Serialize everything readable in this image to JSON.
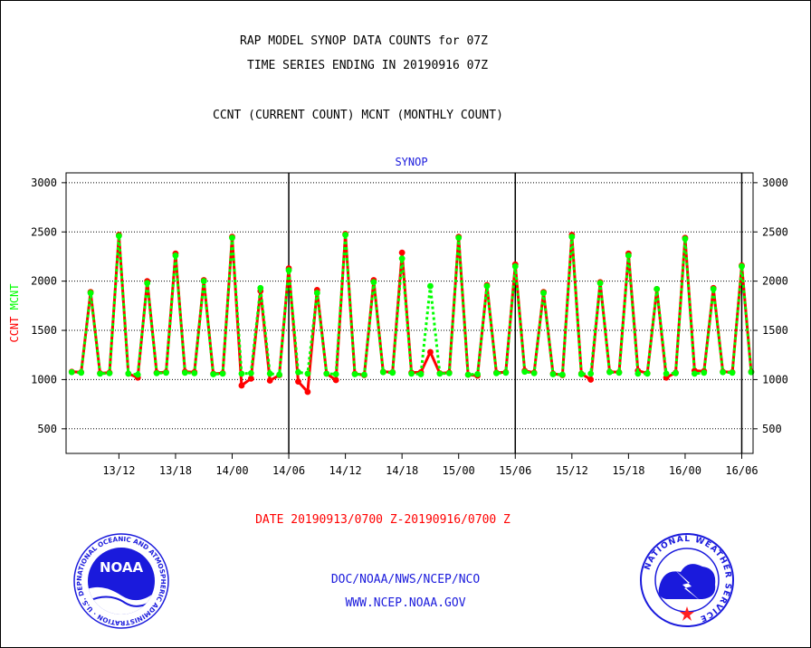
{
  "header": {
    "title_line1": "RAP MODEL SYNOP DATA COUNTS for 07Z",
    "title_line2": "TIME SERIES ENDING IN 20190916 07Z",
    "title_line3": "CCNT (CURRENT COUNT) MCNT (MONTHLY COUNT)"
  },
  "chart_data": {
    "type": "line",
    "title": "SYNOP",
    "ylabel_current": "CCNT",
    "ylabel_monthly": "MCNT",
    "xlabel": "DATE 20190913/0700 Z-20190916/0700 Z",
    "ylim": [
      250,
      3100
    ],
    "yticks": [
      500,
      1000,
      1500,
      2000,
      2500,
      3000
    ],
    "ytick_labels": [
      "500",
      "1000",
      "1500",
      "2000",
      "2500",
      "3000"
    ],
    "xtick_labels": [
      "13/12",
      "13/18",
      "14/00",
      "14/06",
      "14/12",
      "14/18",
      "15/00",
      "15/06",
      "15/12",
      "15/18",
      "16/00",
      "16/06"
    ],
    "xtick_hours": [
      5,
      11,
      17,
      23,
      29,
      35,
      41,
      47,
      53,
      59,
      65,
      71
    ],
    "day_boundary_hours": [
      23,
      47,
      71
    ],
    "grid": true,
    "colors": {
      "current": "#ff0000",
      "monthly": "#00ff00"
    },
    "hours": [
      0,
      1,
      2,
      3,
      4,
      5,
      6,
      7,
      8,
      9,
      10,
      11,
      12,
      13,
      14,
      15,
      16,
      17,
      18,
      19,
      20,
      21,
      22,
      23,
      24,
      25,
      26,
      27,
      28,
      29,
      30,
      31,
      32,
      33,
      34,
      35,
      36,
      37,
      38,
      39,
      40,
      41,
      42,
      43,
      44,
      45,
      46,
      47,
      48,
      49,
      50,
      51,
      52,
      53,
      54,
      55,
      56,
      57,
      58,
      59,
      60,
      61,
      62,
      63,
      64,
      65,
      66,
      67,
      68,
      69,
      70,
      71,
      72
    ],
    "series": [
      {
        "name": "CCNT",
        "values": [
          1080,
          1075,
          1890,
          1065,
          1070,
          2470,
          1060,
          1020,
          2000,
          1070,
          1075,
          2280,
          1080,
          1075,
          2010,
          1060,
          1065,
          2450,
          940,
          1010,
          1900,
          990,
          1045,
          2130,
          980,
          875,
          1910,
          1060,
          995,
          2480,
          1060,
          1045,
          2010,
          1080,
          1075,
          2290,
          1070,
          1075,
          1280,
          1065,
          1070,
          2450,
          1050,
          1040,
          1960,
          1070,
          1075,
          2170,
          1090,
          1070,
          1890,
          1060,
          1045,
          2470,
          1060,
          1000,
          1990,
          1080,
          1075,
          2280,
          1090,
          1065,
          1920,
          1020,
          1070,
          2440,
          1090,
          1085,
          1930,
          1080,
          1075,
          2160,
          1080
        ]
      },
      {
        "name": "MCNT",
        "values": [
          1075,
          1070,
          1880,
          1060,
          1065,
          2460,
          1060,
          1050,
          1980,
          1065,
          1070,
          2260,
          1070,
          1065,
          2000,
          1055,
          1060,
          2440,
          1060,
          1065,
          1930,
          1060,
          1050,
          2110,
          1075,
          1060,
          1880,
          1060,
          1055,
          2470,
          1055,
          1050,
          1990,
          1075,
          1070,
          2230,
          1060,
          1055,
          1950,
          1060,
          1065,
          2440,
          1050,
          1055,
          1950,
          1065,
          1070,
          2150,
          1080,
          1065,
          1880,
          1055,
          1050,
          2450,
          1055,
          1060,
          1980,
          1075,
          1070,
          2260,
          1060,
          1060,
          1920,
          1060,
          1065,
          2430,
          1060,
          1070,
          1920,
          1075,
          1070,
          2150,
          1075
        ]
      }
    ]
  },
  "footer": {
    "org": "DOC/NOAA/NWS/NCEP/NCO",
    "url": "WWW.NCEP.NOAA.GOV"
  },
  "logos": {
    "noaa_text": "NOAA",
    "noaa_ring": "NATIONAL OCEANIC AND ATMOSPHERIC ADMINISTRATION · U.S. DEPARTMENT OF COMMERCE ·",
    "nws_ring": "NATIONAL WEATHER SERVICE"
  }
}
